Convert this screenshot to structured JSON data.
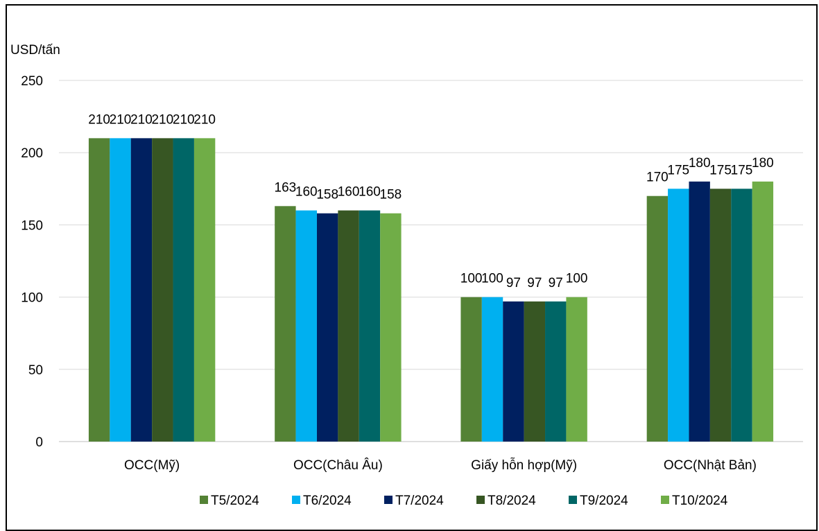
{
  "chart_data": {
    "type": "bar",
    "ylabel": "USD/tấn",
    "ylim": [
      0,
      250
    ],
    "yticks": [
      0,
      50,
      100,
      150,
      200,
      250
    ],
    "grid": true,
    "legend_position": "bottom",
    "categories": [
      "OCC(Mỹ)",
      "OCC(Châu Âu)",
      "Giấy hỗn hợp(Mỹ)",
      "OCC(Nhật Bản)"
    ],
    "series": [
      {
        "name": "T5/2024",
        "color": "#548235",
        "values": [
          210,
          163,
          100,
          170
        ]
      },
      {
        "name": "T6/2024",
        "color": "#00B0F0",
        "values": [
          210,
          160,
          100,
          175
        ]
      },
      {
        "name": "T7/2024",
        "color": "#002060",
        "values": [
          210,
          158,
          97,
          180
        ]
      },
      {
        "name": "T8/2024",
        "color": "#375623",
        "values": [
          210,
          160,
          97,
          175
        ]
      },
      {
        "name": "T9/2024",
        "color": "#006666",
        "values": [
          210,
          160,
          97,
          175
        ]
      },
      {
        "name": "T10/2024",
        "color": "#70AD47",
        "values": [
          210,
          158,
          100,
          180
        ]
      }
    ]
  }
}
